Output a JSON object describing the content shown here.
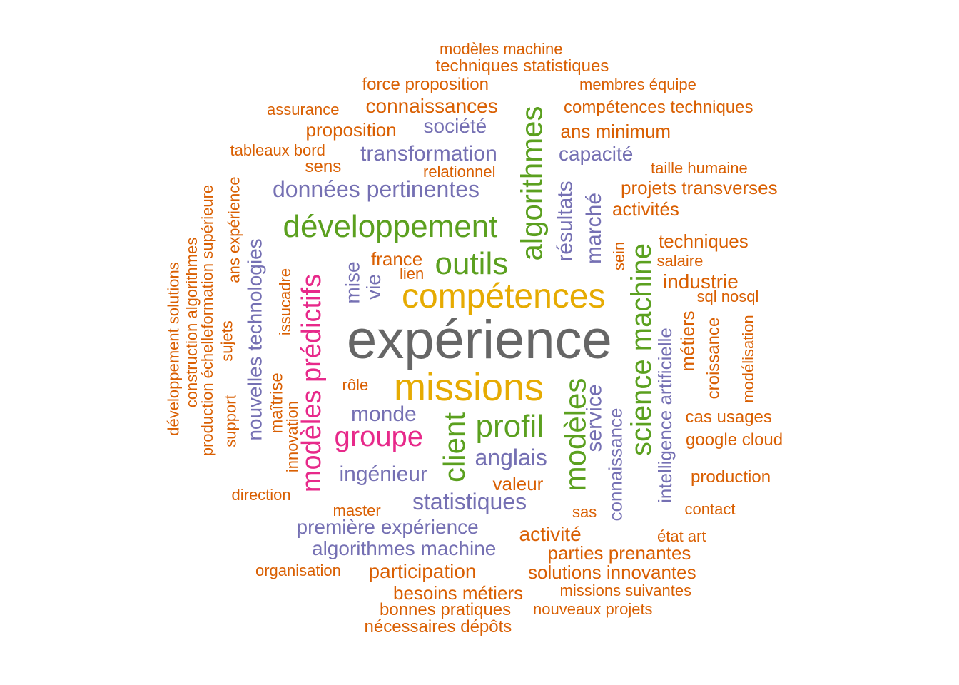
{
  "palette": {
    "orange": "#d95f02",
    "purple": "#7570b3",
    "green": "#5ba01f",
    "gold": "#e6ab02",
    "pink": "#e7298a",
    "gray": "#666666"
  },
  "words": [
    {
      "text": "expérience"
    },
    {
      "text": "compétences"
    },
    {
      "text": "missions"
    },
    {
      "text": "outils"
    },
    {
      "text": "développement"
    },
    {
      "text": "algorithmes"
    },
    {
      "text": "science machine"
    },
    {
      "text": "modèles"
    },
    {
      "text": "client"
    },
    {
      "text": "profil"
    },
    {
      "text": "groupe"
    },
    {
      "text": "modèles prédictifs"
    },
    {
      "text": "données pertinentes"
    },
    {
      "text": "transformation"
    },
    {
      "text": "société"
    },
    {
      "text": "capacité"
    },
    {
      "text": "résultats"
    },
    {
      "text": "marché"
    },
    {
      "text": "monde"
    },
    {
      "text": "anglais"
    },
    {
      "text": "ingénieur"
    },
    {
      "text": "statistiques"
    },
    {
      "text": "première expérience"
    },
    {
      "text": "algorithmes machine"
    },
    {
      "text": "service"
    },
    {
      "text": "connaissance"
    },
    {
      "text": "intelligence artificielle"
    },
    {
      "text": "nouvelles technologies"
    },
    {
      "text": "mise"
    },
    {
      "text": "vie"
    },
    {
      "text": "modèles machine"
    },
    {
      "text": "techniques statistiques"
    },
    {
      "text": "force proposition"
    },
    {
      "text": "membres équipe"
    },
    {
      "text": "assurance"
    },
    {
      "text": "connaissances"
    },
    {
      "text": "compétences techniques"
    },
    {
      "text": "proposition"
    },
    {
      "text": "ans minimum"
    },
    {
      "text": "tableaux bord"
    },
    {
      "text": "sens"
    },
    {
      "text": "relationnel"
    },
    {
      "text": "taille humaine"
    },
    {
      "text": "projets transverses"
    },
    {
      "text": "activités"
    },
    {
      "text": "techniques"
    },
    {
      "text": "salaire"
    },
    {
      "text": "industrie"
    },
    {
      "text": "sql nosql"
    },
    {
      "text": "france"
    },
    {
      "text": "lien"
    },
    {
      "text": "sein"
    },
    {
      "text": "métiers"
    },
    {
      "text": "croissance"
    },
    {
      "text": "modélisation"
    },
    {
      "text": "cas usages"
    },
    {
      "text": "google cloud"
    },
    {
      "text": "production"
    },
    {
      "text": "contact"
    },
    {
      "text": "état art"
    },
    {
      "text": "valeur"
    },
    {
      "text": "activité"
    },
    {
      "text": "parties prenantes"
    },
    {
      "text": "solutions innovantes"
    },
    {
      "text": "missions suivantes"
    },
    {
      "text": "nouveaux projets"
    },
    {
      "text": "participation"
    },
    {
      "text": "besoins métiers"
    },
    {
      "text": "bonnes pratiques"
    },
    {
      "text": "nécessaires dépôts"
    },
    {
      "text": "organisation"
    },
    {
      "text": "direction"
    },
    {
      "text": "master"
    },
    {
      "text": "sas"
    },
    {
      "text": "rôle"
    },
    {
      "text": "développement solutions"
    },
    {
      "text": "construction algorithmes"
    },
    {
      "text": "production échelleformation supérieure"
    },
    {
      "text": "ans expérience"
    },
    {
      "text": "sujets"
    },
    {
      "text": "support"
    },
    {
      "text": "maîtrise"
    },
    {
      "text": "issucadre"
    },
    {
      "text": "innovation"
    }
  ]
}
